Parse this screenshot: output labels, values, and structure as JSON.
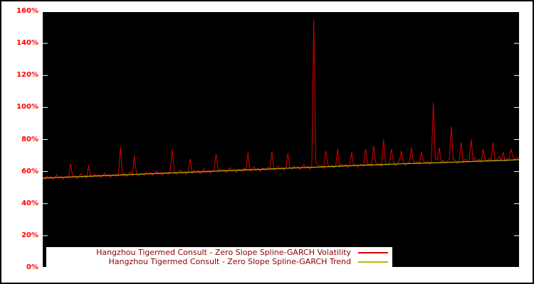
{
  "figure": {
    "background": "#ffffff",
    "plot_background": "#000000",
    "frame_color": "#ffffff",
    "outer_border_color": "#000000"
  },
  "axis": {
    "tick_label_color": "#ff0000"
  },
  "legend": {
    "background": "#ffffff",
    "text_color": "#8b0000"
  },
  "chart_data": {
    "type": "line",
    "title": "",
    "xlabel": "",
    "ylabel": "",
    "grid": false,
    "legend_position": "bottom-center",
    "ylim": [
      0,
      160
    ],
    "ytick_labels": [
      "0%",
      "20%",
      "40%",
      "60%",
      "80%",
      "100%",
      "120%",
      "140%",
      "160%"
    ],
    "ytick_values": [
      0,
      20,
      40,
      60,
      80,
      100,
      120,
      140,
      160
    ],
    "series": [
      {
        "name": "Hangzhou Tigermed Consult - Zero Slope Spline-GARCH Volatility",
        "color": "#dd0000",
        "stroke_width": 1,
        "values": [
          56.2,
          55.2,
          57.1,
          55.7,
          56.9,
          55.1,
          56.3,
          58.0,
          55.7,
          57.0,
          55.1,
          56.7,
          56.8,
          55.8,
          65.0,
          56.3,
          57.5,
          55.7,
          56.9,
          58.6,
          56.3,
          57.6,
          55.7,
          64.0,
          57.4,
          56.4,
          58.3,
          56.9,
          58.1,
          56.3,
          57.5,
          59.2,
          56.9,
          58.2,
          56.3,
          57.9,
          58.0,
          57.0,
          58.9,
          75.5,
          57.5,
          58.8,
          57.0,
          58.2,
          59.9,
          57.6,
          70.0,
          58.9,
          57.1,
          58.6,
          58.8,
          57.7,
          59.7,
          58.2,
          59.5,
          57.6,
          58.9,
          60.5,
          58.3,
          59.5,
          57.7,
          59.2,
          59.4,
          58.3,
          60.3,
          73.5,
          60.1,
          58.2,
          59.5,
          61.1,
          58.9,
          60.1,
          58.3,
          59.8,
          68.0,
          58.9,
          60.9,
          59.4,
          60.7,
          58.8,
          60.1,
          61.7,
          59.5,
          60.7,
          58.9,
          60.4,
          60.6,
          71.0,
          59.6,
          61.5,
          60.1,
          61.3,
          59.5,
          60.7,
          62.4,
          60.2,
          61.4,
          59.6,
          61.1,
          61.3,
          60.2,
          62.2,
          60.7,
          72.0,
          60.1,
          61.4,
          63.0,
          60.8,
          62.0,
          60.2,
          61.7,
          61.9,
          60.8,
          62.8,
          61.3,
          72.5,
          60.7,
          62.0,
          63.6,
          61.4,
          62.6,
          60.8,
          62.3,
          71.5,
          62.5,
          61.5,
          63.4,
          62.0,
          63.2,
          61.4,
          62.6,
          64.3,
          62.0,
          63.3,
          61.4,
          63.0,
          155.0,
          66.0,
          64.5,
          63.3,
          63.8,
          62.0,
          73.0,
          64.9,
          62.7,
          63.9,
          62.1,
          63.6,
          74.0,
          62.7,
          64.7,
          63.2,
          64.5,
          62.6,
          63.9,
          72.0,
          63.3,
          64.5,
          62.7,
          64.2,
          64.4,
          63.3,
          74.0,
          63.8,
          65.1,
          63.2,
          76.0,
          66.1,
          63.9,
          65.1,
          63.3,
          80.0,
          65.0,
          63.9,
          65.9,
          74.0,
          65.7,
          63.8,
          65.1,
          66.7,
          73.0,
          65.7,
          63.9,
          65.4,
          65.6,
          75.0,
          66.5,
          65.0,
          66.3,
          64.4,
          72.0,
          67.3,
          65.1,
          66.3,
          64.5,
          66.1,
          103.0,
          68.0,
          67.1,
          75.0,
          65.7,
          67.0,
          65.1,
          66.4,
          68.0,
          88.0,
          67.5,
          67.1,
          65.2,
          66.8,
          78.0,
          65.9,
          67.8,
          66.4,
          67.6,
          80.0,
          67.0,
          68.7,
          66.4,
          67.7,
          65.8,
          74.0,
          67.5,
          66.5,
          68.4,
          67.0,
          78.0,
          66.4,
          67.6,
          69.3,
          67.0,
          72.0,
          66.4,
          68.0,
          68.1,
          74.0,
          69.0,
          67.6,
          68.8,
          67.5
        ]
      },
      {
        "name": "Hangzhou Tigermed Consult - Zero Slope Spline-GARCH Trend",
        "color": "#b8b800",
        "stroke_width": 1.2,
        "values": [
          55.9,
          56.4,
          56.9,
          57.4,
          57.9,
          58.4,
          58.9,
          59.4,
          59.9,
          60.4,
          60.9,
          61.4,
          61.9,
          62.4,
          62.9,
          63.4,
          63.9,
          64.3,
          64.8,
          65.2,
          65.6,
          66.0,
          66.5,
          66.9,
          67.4
        ]
      }
    ]
  }
}
